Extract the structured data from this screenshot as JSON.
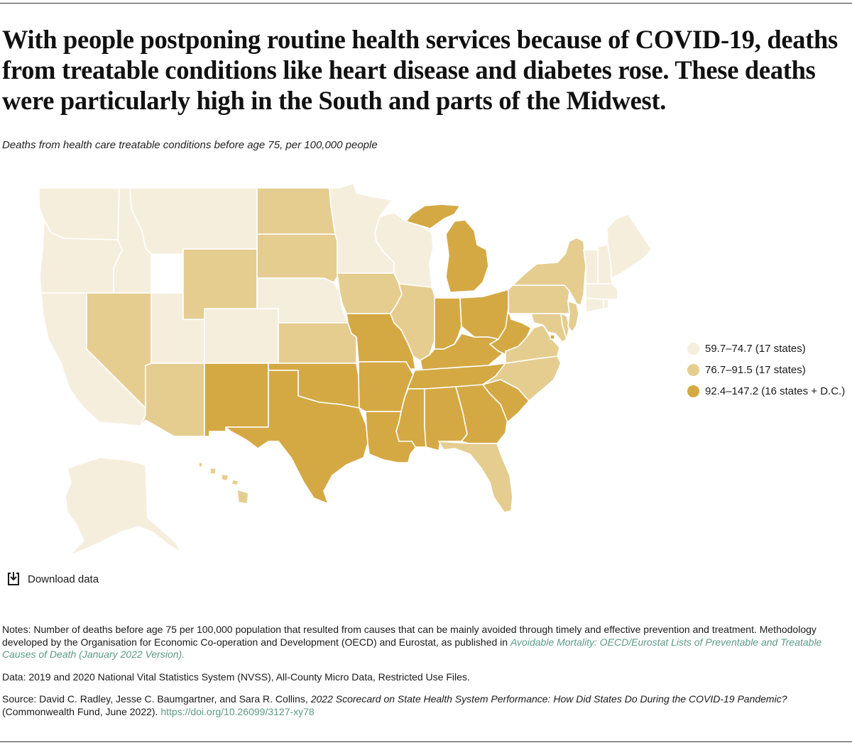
{
  "headline": "With people postponing routine health services because of COVID-19, deaths from treatable conditions like heart disease and diabetes rose. These deaths were particularly high in the South and parts of the Midwest.",
  "subtitle": "Deaths from health care treatable conditions before age 75, per 100,000 people",
  "colors": {
    "low": "#f6eedd",
    "mid": "#e5cd90",
    "high": "#d4a944",
    "link": "#5b9a87"
  },
  "legend": [
    {
      "label": "59.7–74.7 (17 states)",
      "bin": "low"
    },
    {
      "label": "76.7–91.5 (17 states)",
      "bin": "mid"
    },
    {
      "label": "92.4–147.2 (16 states + D.C.)",
      "bin": "high"
    }
  ],
  "state_bins": {
    "WA": "low",
    "OR": "low",
    "CA": "low",
    "ID": "low",
    "MT": "low",
    "NV": "mid",
    "UT": "low",
    "AZ": "mid",
    "WY": "mid",
    "CO": "low",
    "NM": "high",
    "ND": "mid",
    "SD": "mid",
    "NE": "low",
    "KS": "mid",
    "OK": "high",
    "TX": "high",
    "MN": "low",
    "IA": "mid",
    "MO": "high",
    "AR": "high",
    "LA": "high",
    "WI": "low",
    "IL": "mid",
    "MI": "high",
    "IN": "high",
    "OH": "high",
    "KY": "high",
    "TN": "high",
    "MS": "high",
    "AL": "high",
    "GA": "high",
    "FL": "mid",
    "SC": "high",
    "NC": "mid",
    "VA": "mid",
    "WV": "high",
    "PA": "mid",
    "NY": "mid",
    "VT": "low",
    "NH": "low",
    "ME": "low",
    "MA": "low",
    "RI": "low",
    "CT": "low",
    "NJ": "mid",
    "DE": "mid",
    "MD": "mid",
    "DC": "high",
    "AK": "low",
    "HI": "mid"
  },
  "download_label": "Download data",
  "notes": {
    "notes_text": "Notes: Number of deaths before age 75 per 100,000 population that resulted from causes that can be mainly avoided through timely and effective prevention and treatment. Methodology developed by the Organisation for Economic Co-operation and Development (OECD) and Eurostat, as published in ",
    "notes_link": "Avoidable Mortality: OECD/Eurostat Lists of Preventable and Treatable Causes of Death (January 2022 Version).",
    "data_text": "Data: 2019 and 2020 National Vital Statistics System (NVSS), All-County Micro Data, Restricted Use Files.",
    "source_text": "Source: David C. Radley, Jesse C. Baumgartner, and Sara R. Collins, ",
    "source_title": "2022 Scorecard on State Health System Performance: How Did States Do During the COVID-19 Pandemic?",
    "source_text2": " (Commonwealth Fund, June 2022). ",
    "source_link": "https://doi.org/10.26099/3127-xy78"
  }
}
